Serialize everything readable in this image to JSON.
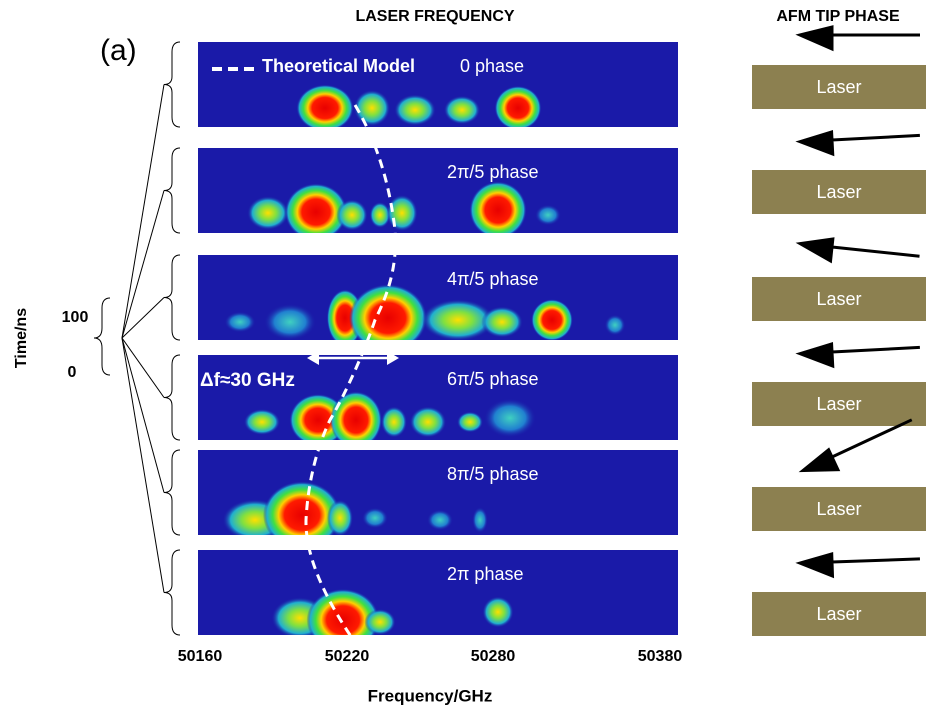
{
  "panel_label": "(a)",
  "header": {
    "left": "LASER FREQUENCY",
    "right": "AFM TIP PHASE"
  },
  "legend": "Theoretical Model",
  "panels": [
    {
      "phase": "0 phase"
    },
    {
      "phase": "2π/5 phase"
    },
    {
      "phase": "4π/5 phase"
    },
    {
      "phase": "6π/5 phase"
    },
    {
      "phase": "8π/5 phase"
    },
    {
      "phase": "2π phase"
    }
  ],
  "annotation": "Δf≈30 GHz",
  "y_axis": {
    "title": "Time/ns",
    "ticks": [
      "100",
      "0"
    ]
  },
  "x_axis": {
    "title": "Frequency/GHz",
    "ticks": [
      "50160",
      "50220",
      "50280",
      "50380"
    ]
  },
  "tips": [
    "Laser",
    "Laser",
    "Laser",
    "Laser",
    "Laser",
    "Laser"
  ]
}
